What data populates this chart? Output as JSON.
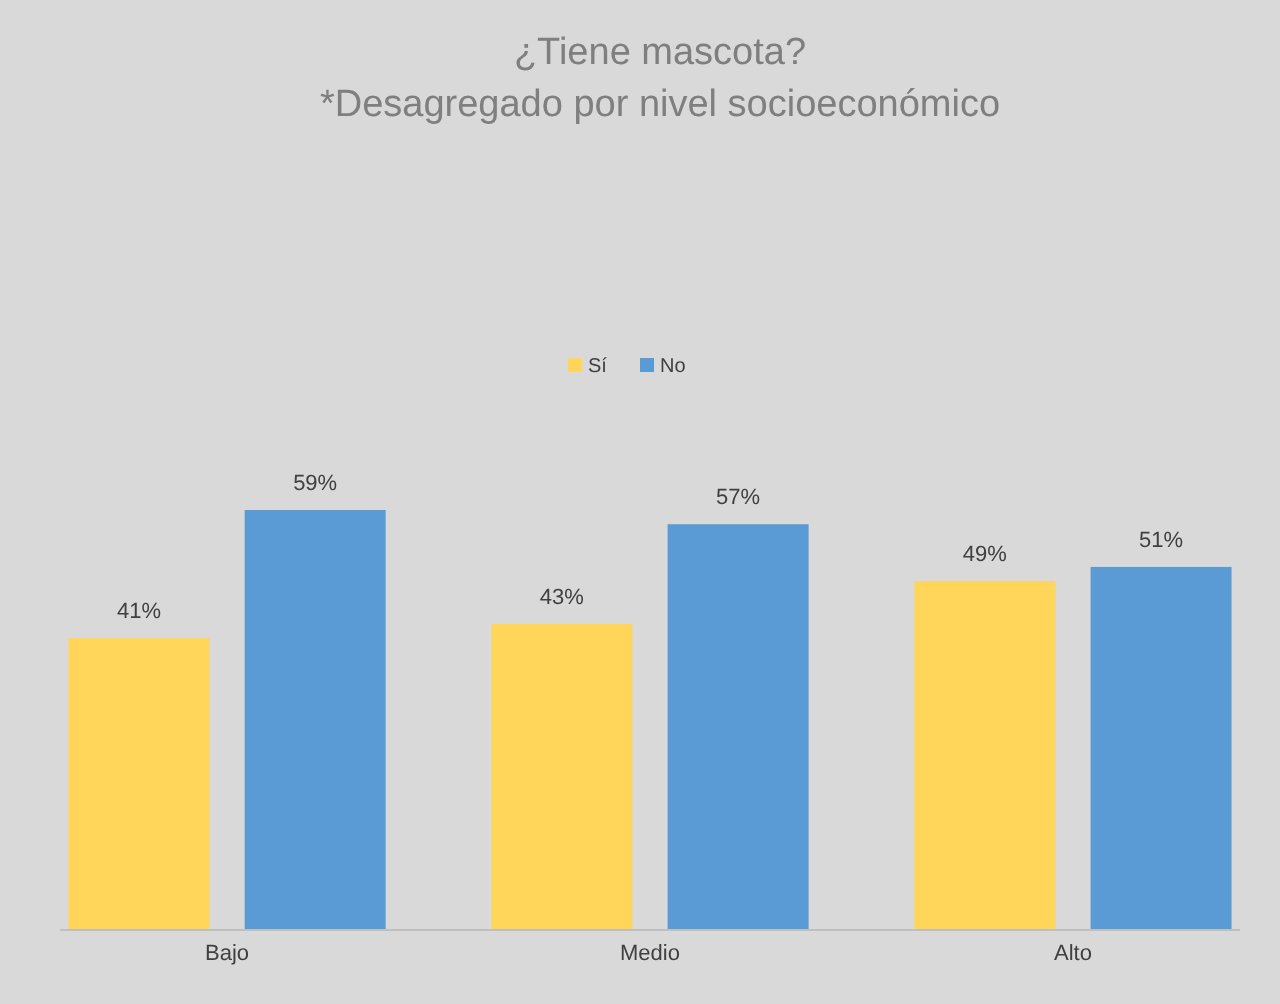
{
  "chart_data": {
    "type": "bar",
    "title": "¿Tiene mascota?",
    "subtitle": "*Desagregado por nivel socioeconómico",
    "categories": [
      "Bajo",
      "Medio",
      "Alto"
    ],
    "series": [
      {
        "name": "Sí",
        "color": "#ffd55a",
        "values": [
          41,
          43,
          49
        ],
        "value_labels": [
          "41%",
          "43%",
          "49%"
        ]
      },
      {
        "name": "No",
        "color": "#5b9bd5",
        "values": [
          59,
          57,
          51
        ],
        "value_labels": [
          "59%",
          "57%",
          "51%"
        ]
      }
    ],
    "legend": "top",
    "grid": false,
    "tick_labels": "x"
  }
}
